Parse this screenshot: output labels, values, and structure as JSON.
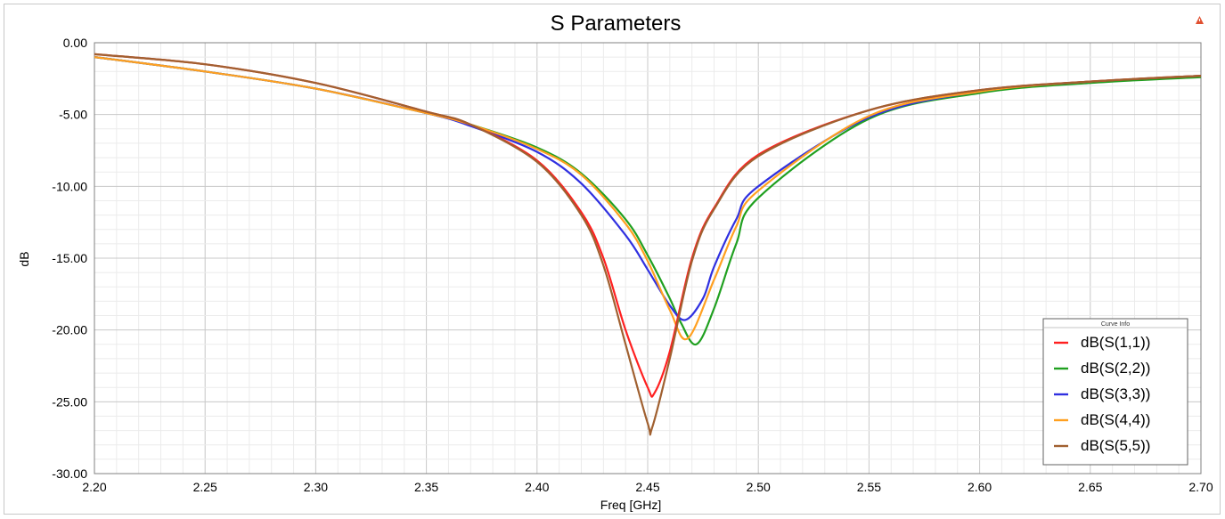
{
  "chart_data": {
    "type": "line",
    "title": "S Parameters",
    "xlabel": "Freq [GHz]",
    "ylabel": "dB",
    "xlim": [
      2.2,
      2.7
    ],
    "ylim": [
      -30.0,
      0.0
    ],
    "x_ticks": [
      "2.20",
      "2.25",
      "2.30",
      "2.35",
      "2.40",
      "2.45",
      "2.50",
      "2.55",
      "2.60",
      "2.65",
      "2.70"
    ],
    "y_ticks": [
      "0.00",
      "-5.00",
      "-10.00",
      "-15.00",
      "-20.00",
      "-25.00",
      "-30.00"
    ],
    "grid": true,
    "legend_title": "Curve Info",
    "legend_position": "bottom-right",
    "series": [
      {
        "name": "dB(S(1,1))",
        "color": "#ff2020",
        "x": [
          2.2,
          2.25,
          2.3,
          2.35,
          2.37,
          2.4,
          2.42,
          2.43,
          2.44,
          2.45,
          2.453,
          2.46,
          2.47,
          2.48,
          2.5,
          2.55,
          2.6,
          2.65,
          2.7
        ],
        "y": [
          -0.8,
          -1.5,
          -2.8,
          -4.8,
          -5.7,
          -8.2,
          -11.8,
          -15.0,
          -20.0,
          -24.0,
          -24.4,
          -21.5,
          -15.0,
          -11.5,
          -7.8,
          -4.7,
          -3.3,
          -2.7,
          -2.3
        ]
      },
      {
        "name": "dB(S(2,2))",
        "color": "#20a020",
        "x": [
          2.2,
          2.25,
          2.3,
          2.35,
          2.37,
          2.4,
          2.42,
          2.44,
          2.45,
          2.46,
          2.465,
          2.472,
          2.48,
          2.49,
          2.5,
          2.55,
          2.6,
          2.65,
          2.7
        ],
        "y": [
          -1.0,
          -2.0,
          -3.2,
          -4.9,
          -5.7,
          -7.3,
          -9.1,
          -12.3,
          -14.8,
          -17.8,
          -19.5,
          -21.0,
          -18.5,
          -14.0,
          -10.8,
          -5.3,
          -3.5,
          -2.8,
          -2.4
        ]
      },
      {
        "name": "dB(S(3,3))",
        "color": "#3030e0",
        "x": [
          2.2,
          2.25,
          2.3,
          2.35,
          2.37,
          2.4,
          2.42,
          2.44,
          2.45,
          2.46,
          2.467,
          2.475,
          2.48,
          2.49,
          2.5,
          2.55,
          2.6,
          2.65,
          2.7
        ],
        "y": [
          -1.0,
          -2.0,
          -3.2,
          -4.9,
          -5.8,
          -7.6,
          -9.8,
          -13.4,
          -15.8,
          -18.3,
          -19.3,
          -17.8,
          -15.6,
          -12.3,
          -10.0,
          -5.2,
          -3.4,
          -2.7,
          -2.3
        ]
      },
      {
        "name": "dB(S(4,4))",
        "color": "#ffa020",
        "x": [
          2.2,
          2.25,
          2.3,
          2.35,
          2.37,
          2.4,
          2.42,
          2.44,
          2.45,
          2.46,
          2.468,
          2.48,
          2.49,
          2.5,
          2.55,
          2.6,
          2.65,
          2.7
        ],
        "y": [
          -1.0,
          -2.0,
          -3.2,
          -4.9,
          -5.7,
          -7.4,
          -9.2,
          -12.6,
          -15.2,
          -18.6,
          -20.6,
          -16.5,
          -12.8,
          -10.3,
          -5.1,
          -3.4,
          -2.7,
          -2.3
        ]
      },
      {
        "name": "dB(S(5,5))",
        "color": "#a06030",
        "x": [
          2.2,
          2.25,
          2.3,
          2.35,
          2.37,
          2.4,
          2.42,
          2.43,
          2.44,
          2.45,
          2.452,
          2.46,
          2.47,
          2.48,
          2.5,
          2.55,
          2.6,
          2.65,
          2.7
        ],
        "y": [
          -0.8,
          -1.5,
          -2.8,
          -4.8,
          -5.7,
          -8.3,
          -12.0,
          -15.5,
          -21.0,
          -26.5,
          -26.8,
          -22.0,
          -15.2,
          -11.6,
          -7.9,
          -4.7,
          -3.3,
          -2.7,
          -2.3
        ]
      }
    ]
  }
}
